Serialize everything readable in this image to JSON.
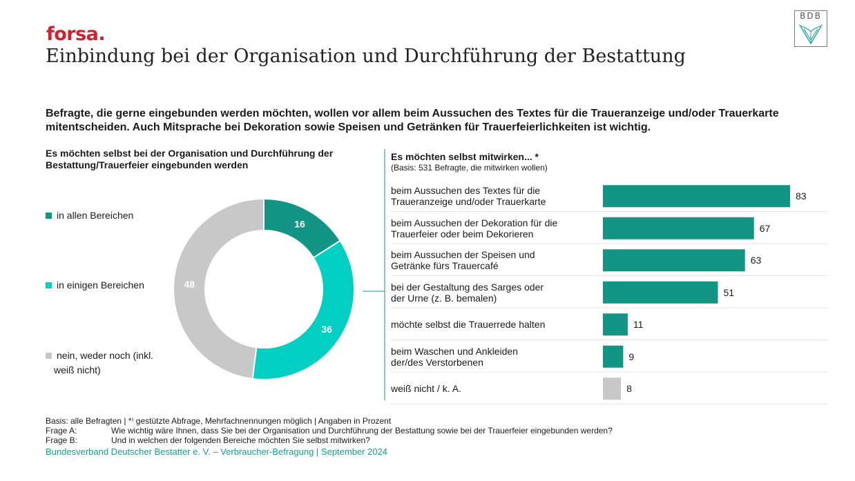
{
  "header": {
    "brand": "forsa.",
    "title": "Einbindung bei der Organisation und Durchführung der Bestattung",
    "logo_text": "BDB"
  },
  "headline": "Befragte, die gerne eingebunden werden möchten, wollen vor allem beim Aussuchen des Textes für die Traueranzeige und/oder Trauerkarte mitentscheiden. Auch Mitsprache bei Dekoration sowie Speisen und Getränken für Trauerfeierlichkeiten ist wichtig.",
  "colors": {
    "dark_teal": "#139586",
    "light_teal": "#00cfc2",
    "grey": "#c8c8c8",
    "brand_red": "#d4202e",
    "source_teal": "#1f9a8e"
  },
  "chart_data": [
    {
      "type": "pie",
      "title": "Es möchten selbst bei der Organisation und Durchführung der Bestattung/Trauerfeier eingebunden werden",
      "legend_position": "left",
      "categories": [
        "in allen Bereichen",
        "in einigen Bereichen",
        "nein, weder noch (inkl. weiß nicht)"
      ],
      "legend": [
        {
          "line1": "in allen Bereichen",
          "line2": ""
        },
        {
          "line1": "in einigen Bereichen",
          "line2": ""
        },
        {
          "line1": "nein, weder noch (inkl.",
          "line2": "weiß nicht)"
        }
      ],
      "values": [
        16,
        36,
        48
      ],
      "colors": [
        "#139586",
        "#00cfc2",
        "#c8c8c8"
      ]
    },
    {
      "type": "bar",
      "title": "Es möchten selbst mitwirken... *",
      "subtitle": "(Basis: 531 Befragte, die mitwirken wollen)",
      "orientation": "horizontal",
      "categories": [
        [
          "beim Aussuchen des Textes für die",
          "Traueranzeige und/oder Trauerkarte"
        ],
        [
          "beim Aussuchen der Dekoration für die",
          "Trauerfeier oder beim Dekorieren"
        ],
        [
          "beim Aussuchen der Speisen und",
          "Getränke fürs Trauercafé"
        ],
        [
          "bei der Gestaltung des Sarges oder",
          "der Urne (z. B. bemalen)"
        ],
        [
          "möchte selbst die Trauerrede halten",
          ""
        ],
        [
          "beim Waschen und Ankleiden",
          "der/des Verstorbenen"
        ],
        [
          "weiß nicht / k. A.",
          ""
        ]
      ],
      "values": [
        83,
        67,
        63,
        51,
        11,
        9,
        8
      ],
      "value_labels": [
        "83",
        "67",
        "63",
        "51",
        "11",
        "9",
        "8"
      ],
      "colors": [
        "#139586",
        "#139586",
        "#139586",
        "#139586",
        "#139586",
        "#139586",
        "#c8c8c8"
      ]
    }
  ],
  "footer": {
    "basis": "Basis: alle Befragten | *⁾ gestützte Abfrage, Mehrfachnennungen möglich | Angaben in Prozent",
    "frage_a_label": "Frage A:",
    "frage_a_text": "Wie wichtig wäre Ihnen, dass Sie bei der Organisation und Durchführung der Bestattung sowie bei der Trauerfeier eingebunden werden?",
    "frage_b_label": "Frage B:",
    "frage_b_text": "Und in welchen der folgenden Bereiche möchten Sie selbst mitwirken?",
    "source": "Bundesverband Deutscher Bestatter e. V. – Verbraucher-Befragung | September 2024"
  }
}
